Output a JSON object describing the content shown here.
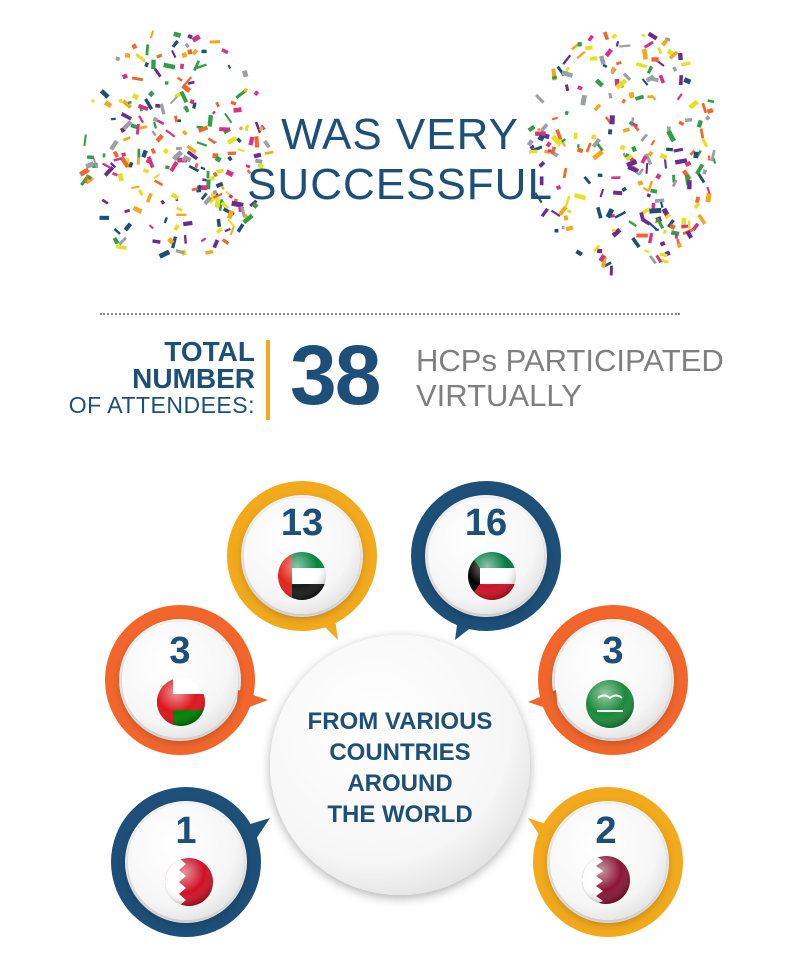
{
  "headline": {
    "line1": "WAS VERY",
    "line2": "SUCCESSFUL"
  },
  "attendees": {
    "label_line1": "TOTAL",
    "label_line2": "NUMBER",
    "label_line3": "OF ATTENDEES:",
    "count": "38",
    "desc_line1": "HCPs PARTICIPATED",
    "desc_line2": "VIRTUALLY"
  },
  "center": {
    "line1": "FROM VARIOUS",
    "line2": "COUNTRIES",
    "line3": "AROUND",
    "line4": "THE WORLD"
  },
  "countries": [
    {
      "count": "13",
      "flag": "uae-flag-icon",
      "ring": "#f2a91b"
    },
    {
      "count": "16",
      "flag": "kuwait-flag-icon",
      "ring": "#1d4f78"
    },
    {
      "count": "3",
      "flag": "oman-flag-icon",
      "ring": "#f2662b"
    },
    {
      "count": "3",
      "flag": "saudi-flag-icon",
      "ring": "#f2662b"
    },
    {
      "count": "1",
      "flag": "bahrain-flag-icon",
      "ring": "#1d4f78"
    },
    {
      "count": "2",
      "flag": "qatar-flag-icon",
      "ring": "#f2a91b"
    }
  ],
  "colors": {
    "navy": "#1d4f78",
    "orange": "#f2662b",
    "gold": "#f2a91b",
    "grey": "#7f7f7f"
  }
}
